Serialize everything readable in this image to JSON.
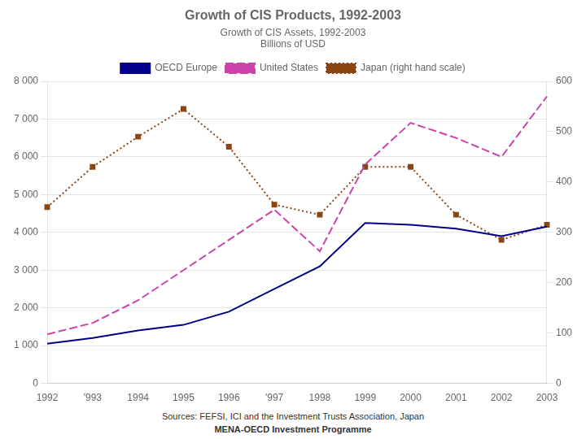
{
  "chart_data": {
    "type": "line",
    "title": "Growth of CIS Products, 1992-2003",
    "subtitle": [
      "Growth of CIS Assets, 1992-2003",
      "Billions of USD"
    ],
    "categories": [
      "1992",
      "'993",
      "1994",
      "1995",
      "1996",
      "'997",
      "1998",
      "1999",
      "2000",
      "2001",
      "2002",
      "2003"
    ],
    "series": [
      {
        "name": "OECD Europe",
        "color": "#00008B",
        "line_style": "solid",
        "marker": "none",
        "values": [
          1050,
          1200,
          1400,
          1550,
          1900,
          2500,
          3100,
          4250,
          4200,
          4100,
          3900,
          4150
        ]
      },
      {
        "name": "United States",
        "color": "#CC44AA",
        "line_style": "dashed",
        "marker": "none",
        "values": [
          1300,
          1600,
          2200,
          3000,
          3800,
          4600,
          3500,
          5800,
          6900,
          6500,
          6000,
          7600
        ]
      },
      {
        "name": "Japan (right hand scale)",
        "color": "#8B4513",
        "line_style": "dotted",
        "marker": "square",
        "axis": "y2",
        "values": [
          350,
          430,
          490,
          545,
          470,
          355,
          335,
          430,
          430,
          335,
          285,
          315
        ]
      }
    ],
    "ylim": [
      0,
      8000
    ],
    "yticks": [
      0,
      {
        "value": 1000,
        "label": "1 000"
      },
      {
        "value": 2000,
        "label": "2 000"
      },
      {
        "value": 3000,
        "label": "3 000"
      },
      {
        "value": 4000,
        "label": "4 000"
      },
      {
        "value": 5000,
        "label": "5 000"
      },
      {
        "value": 6000,
        "label": "6 000"
      },
      {
        "value": 7000,
        "label": "7 000"
      },
      {
        "value": 8000,
        "label": "8 000"
      }
    ],
    "y2lim": [
      0,
      600
    ],
    "y2ticks": [
      0,
      100,
      200,
      300,
      400,
      500,
      600
    ],
    "grid": true,
    "legend": "top",
    "annotations": [
      "Sources: FEFSI, ICI and the Investment Trusts Association, Japan",
      "MENA-OECD Investment Programme"
    ]
  }
}
